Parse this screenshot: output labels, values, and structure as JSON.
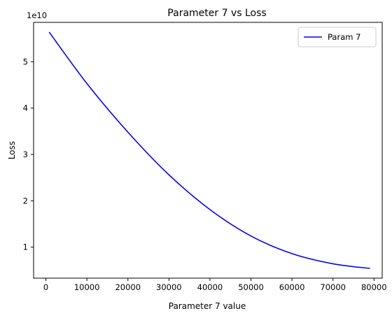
{
  "chart_data": {
    "type": "line",
    "title": "Parameter 7 vs Loss",
    "xlabel": "Parameter 7 value",
    "ylabel": "Loss",
    "y_offset_label": "1e10",
    "xlim": [
      -3000,
      82000
    ],
    "ylim": [
      0.33,
      5.85
    ],
    "x_ticks": [
      0,
      10000,
      20000,
      30000,
      40000,
      50000,
      60000,
      70000,
      80000
    ],
    "x_tick_labels": [
      "0",
      "10000",
      "20000",
      "30000",
      "40000",
      "50000",
      "60000",
      "70000",
      "80000"
    ],
    "y_ticks": [
      1,
      2,
      3,
      4,
      5
    ],
    "y_tick_labels": [
      "1",
      "2",
      "3",
      "4",
      "5"
    ],
    "grid": false,
    "legend_position": "upper-right",
    "series": [
      {
        "name": "Param 7",
        "color": "#0000ff",
        "x": [
          800,
          10000,
          20000,
          30000,
          40000,
          50000,
          60000,
          70000,
          79000
        ],
        "y": [
          5.64,
          4.53,
          3.48,
          2.56,
          1.81,
          1.24,
          0.86,
          0.64,
          0.54
        ]
      }
    ]
  }
}
